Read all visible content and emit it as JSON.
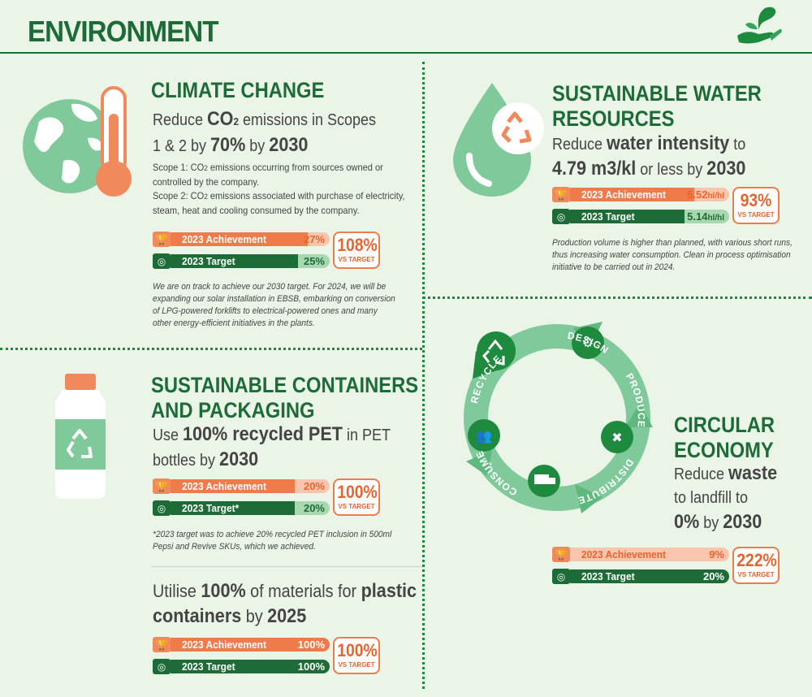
{
  "header": {
    "title": "ENVIRONMENT"
  },
  "climate": {
    "title": "CLIMATE CHANGE",
    "goal": {
      "pre": "Reduce ",
      "b1": "CO",
      "sub": "2",
      "mid": " emissions in Scopes",
      "line2_pre": "1 & 2 by ",
      "b2": "70%",
      "mid2": " by ",
      "b3": "2030"
    },
    "scope1_a": "Scope 1: CO",
    "scope1_sub": "2",
    "scope1_b": " emissions occurring from sources owned or",
    "scope1_c": "controlled by the company.",
    "scope2_a": "Scope 2: CO",
    "scope2_sub": "2",
    "scope2_b": " emissions associated with purchase of electricity,",
    "scope2_c": "steam, heat and cooling consumed by the company.",
    "achievement_label": "2023 Achievement",
    "achievement_value": "27%",
    "achievement_fill": 0.86,
    "target_label": "2023 Target",
    "target_value": "25%",
    "target_fill": 0.8,
    "pct": "108%",
    "vs": "VS TARGET",
    "note": [
      "We are on track to achieve our 2030 target. For 2024, we will be",
      "expanding our solar installation in EBSB, embarking on conversion",
      "of LPG-powered forklifts to electrical-powered ones and many",
      "other energy-efficient initiatives in the plants."
    ]
  },
  "water": {
    "title_l1": "SUSTAINABLE WATER",
    "title_l2": "RESOURCES",
    "goal": {
      "pre": "Reduce ",
      "b1": "water intensity",
      "mid": " to",
      "b2": "4.79 m3/kl",
      "mid2": " or less by ",
      "b3": "2030"
    },
    "achievement_label": "2023 Achievement",
    "achievement_value": "5.52",
    "achievement_unit": "hl/hl",
    "achievement_fill": 0.78,
    "target_label": "2023 Target",
    "target_value": "5.14",
    "target_unit": "hl/hl",
    "target_fill": 0.72,
    "pct": "93%",
    "vs": "VS TARGET",
    "note": [
      "Production volume is higher than planned, with various short runs,",
      "thus increasing water consumption. Clean in process optimisation",
      "initiative to be carried out in 2024."
    ]
  },
  "containers": {
    "title_l1": "SUSTAINABLE CONTAINERS",
    "title_l2": "AND PACKAGING",
    "goal": {
      "pre": "Use ",
      "b1": "100% recycled PET",
      "mid": " in PET",
      "line2": "bottles by ",
      "b2": "2030"
    },
    "achievement_label": "2023 Achievement",
    "achievement_value": "20%",
    "achievement_fill": 0.78,
    "target_label": "2023 Target*",
    "target_value": "20%",
    "target_fill": 0.78,
    "pct": "100%",
    "vs": "VS TARGET",
    "note": [
      "*2023 target was to achieve 20% recycled PET inclusion in 500ml",
      "Pepsi and Revive SKUs, which we achieved."
    ]
  },
  "plastic": {
    "goal": {
      "pre": "Utilise ",
      "b1": "100%",
      "mid": " of materials for ",
      "b2": "plastic",
      "b3": "containers",
      "mid2": " by ",
      "b4": "2025"
    },
    "achievement_label": "2023 Achievement",
    "achievement_value": "100%",
    "achievement_fill": 1,
    "target_label": "2023 Target",
    "target_value": "100%",
    "target_fill": 1,
    "pct": "100%",
    "vs": "VS TARGET"
  },
  "circular": {
    "title_l1": "CIRCULAR",
    "title_l2": "ECONOMY",
    "goal": {
      "pre": "Reduce ",
      "b1": "waste",
      "line2": "to landfill to",
      "b2": "0%",
      "mid": " by ",
      "b3": "2030"
    },
    "cycle": [
      "DESIGN",
      "PRODUCE",
      "DISTRIBUTE",
      "CONSUME",
      "RECYCLE"
    ],
    "achievement_label": "2023 Achievement",
    "achievement_value": "9%",
    "achievement_fill": 0.0,
    "target_label": "2023 Target",
    "target_value": "20%",
    "target_fill": 1,
    "pct": "222%",
    "vs": "VS TARGET"
  },
  "colors": {
    "green": "#1d6b36",
    "orange": "#f07b4a",
    "light_green": "#7fc99a"
  }
}
